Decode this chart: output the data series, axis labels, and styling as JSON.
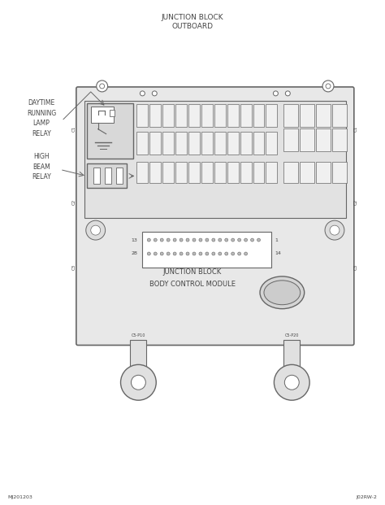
{
  "title_top1": "JUNCTION BLOCK",
  "title_top2": "OUTBOARD",
  "label_daytime": "DAYTIME\nRUNNING\nLAMP\nRELAY",
  "label_highbeam": "HIGH\nBEAM\nRELAY",
  "label_junction": "JUNCTION BLOCK\nBODY CONTROL MODULE",
  "bottom_left": "MJ201203",
  "bottom_right": "J02RW-2",
  "line_color": "#666666",
  "text_color": "#444444",
  "box_bg": "#e8e8e8",
  "fuse_fill": "#f0f0f0",
  "relay_fill": "#d8d8d8",
  "foot_fill": "#e0e0e0",
  "conn_fill": "#ffffff",
  "bg_color": "#f8f8f8"
}
